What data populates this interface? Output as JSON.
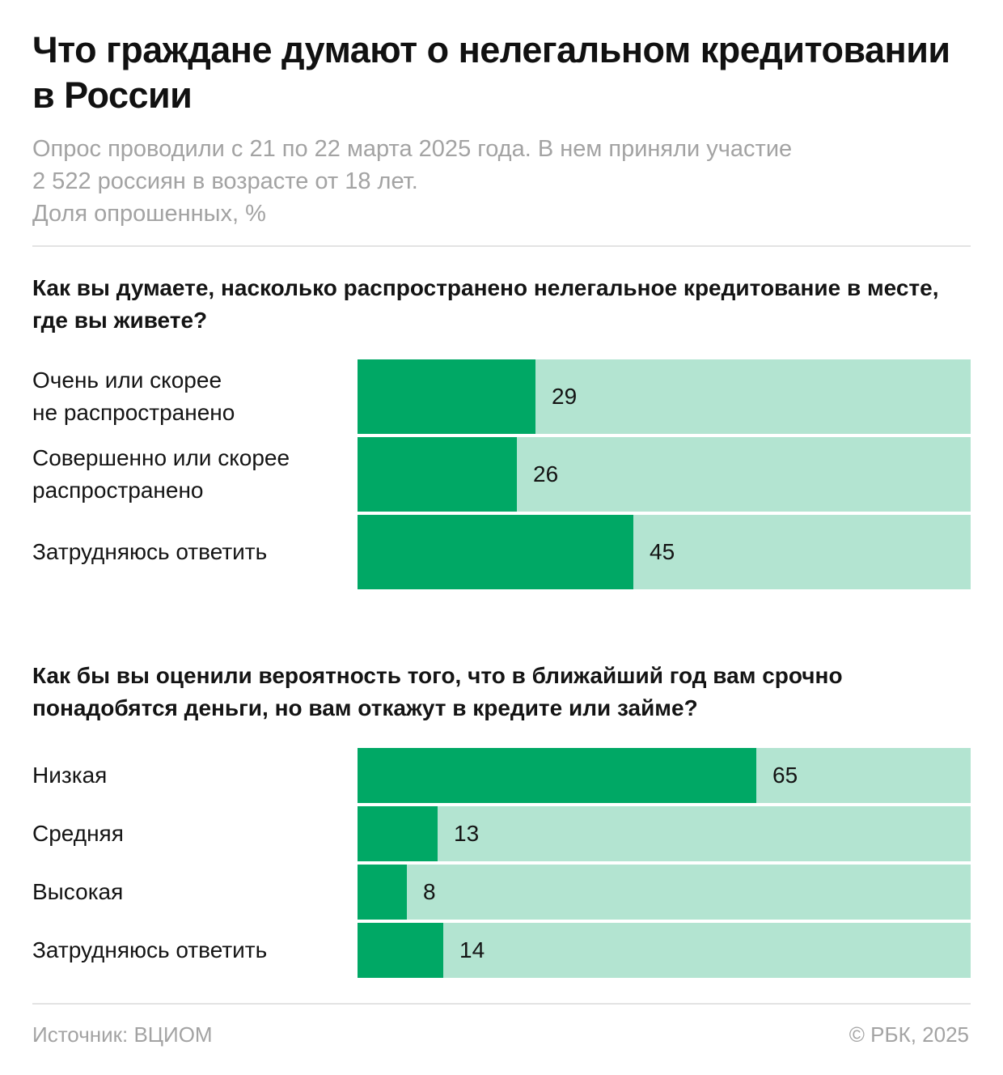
{
  "title": "Что граждане думают о нелегальном кредитовании в России",
  "subtitle_lines": [
    "Опрос проводили с 21 по 22 марта 2025 года. В нем приняли участие",
    "2 522 россиян в возрасте от 18 лет.",
    "Доля опрошенных, %"
  ],
  "footer": {
    "source": "Источник: ВЦИОМ",
    "copyright": "© РБК, 2025"
  },
  "colors": {
    "fill": "#00a865",
    "track": "#b3e4d1",
    "text": "#141414",
    "muted": "#a3a3a3"
  },
  "chart_data": [
    {
      "type": "bar",
      "orientation": "horizontal",
      "title": "Как вы думаете, насколько распространено нелегальное кредитование в месте, где вы живете?",
      "unit": "%",
      "xlim": [
        0,
        100
      ],
      "categories": [
        [
          "Очень или скорее",
          "не распространено"
        ],
        [
          "Совершенно или скорее",
          "распространено"
        ],
        [
          "Затрудняюсь ответить"
        ]
      ],
      "values": [
        29,
        26,
        45
      ]
    },
    {
      "type": "bar",
      "orientation": "horizontal",
      "title": "Как бы вы оценили вероятность того, что в ближайший год вам срочно понадобятся деньги, но вам откажут в кредите или займе?",
      "unit": "%",
      "xlim": [
        0,
        100
      ],
      "categories": [
        [
          "Низкая"
        ],
        [
          "Средняя"
        ],
        [
          "Высокая"
        ],
        [
          "Затрудняюсь ответить"
        ]
      ],
      "values": [
        65,
        13,
        8,
        14
      ]
    }
  ]
}
